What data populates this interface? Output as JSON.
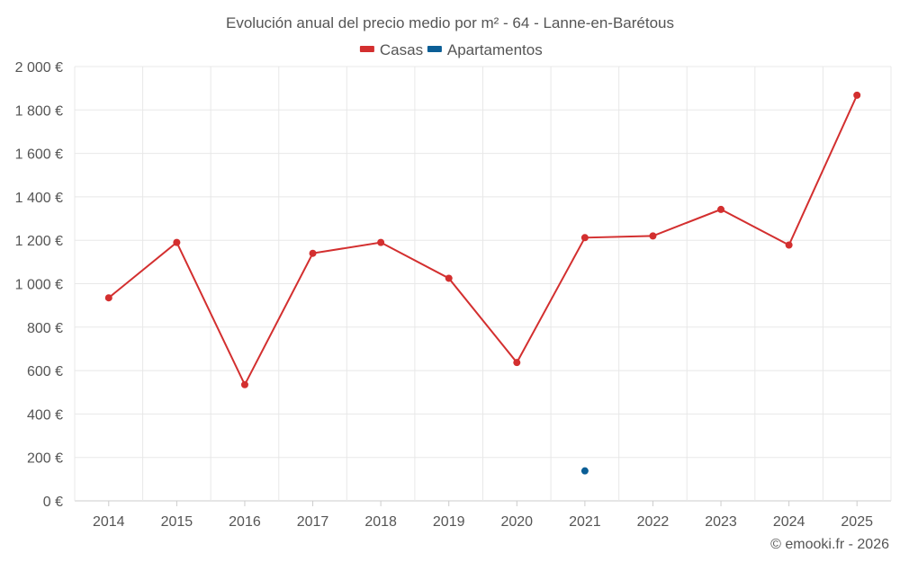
{
  "chart_data": {
    "type": "line",
    "title": "Evolución anual del precio medio por m² - 64 - Lanne-en-Barétous",
    "categories": [
      "2014",
      "2015",
      "2016",
      "2017",
      "2018",
      "2019",
      "2020",
      "2021",
      "2022",
      "2023",
      "2024",
      "2025"
    ],
    "series": [
      {
        "name": "Casas",
        "color": "#d32f2f",
        "values": [
          935,
          1190,
          535,
          1140,
          1190,
          1025,
          637,
          1212,
          1220,
          1342,
          1178,
          1868
        ]
      },
      {
        "name": "Apartamentos",
        "color": "#0b5e96",
        "values": [
          null,
          null,
          null,
          null,
          null,
          null,
          null,
          138,
          null,
          null,
          null,
          null
        ]
      }
    ],
    "ylim": [
      0,
      2000
    ],
    "yticks": [
      0,
      200,
      400,
      600,
      800,
      1000,
      1200,
      1400,
      1600,
      1800,
      2000
    ],
    "ytick_labels": [
      "0 €",
      "200 €",
      "400 €",
      "600 €",
      "800 €",
      "1 000 €",
      "1 200 €",
      "1 400 €",
      "1 600 €",
      "1 800 €",
      "2 000 €"
    ],
    "xlabel": "",
    "ylabel": "",
    "grid": true,
    "legend": "top-center"
  },
  "credit": "© emooki.fr - 2026"
}
